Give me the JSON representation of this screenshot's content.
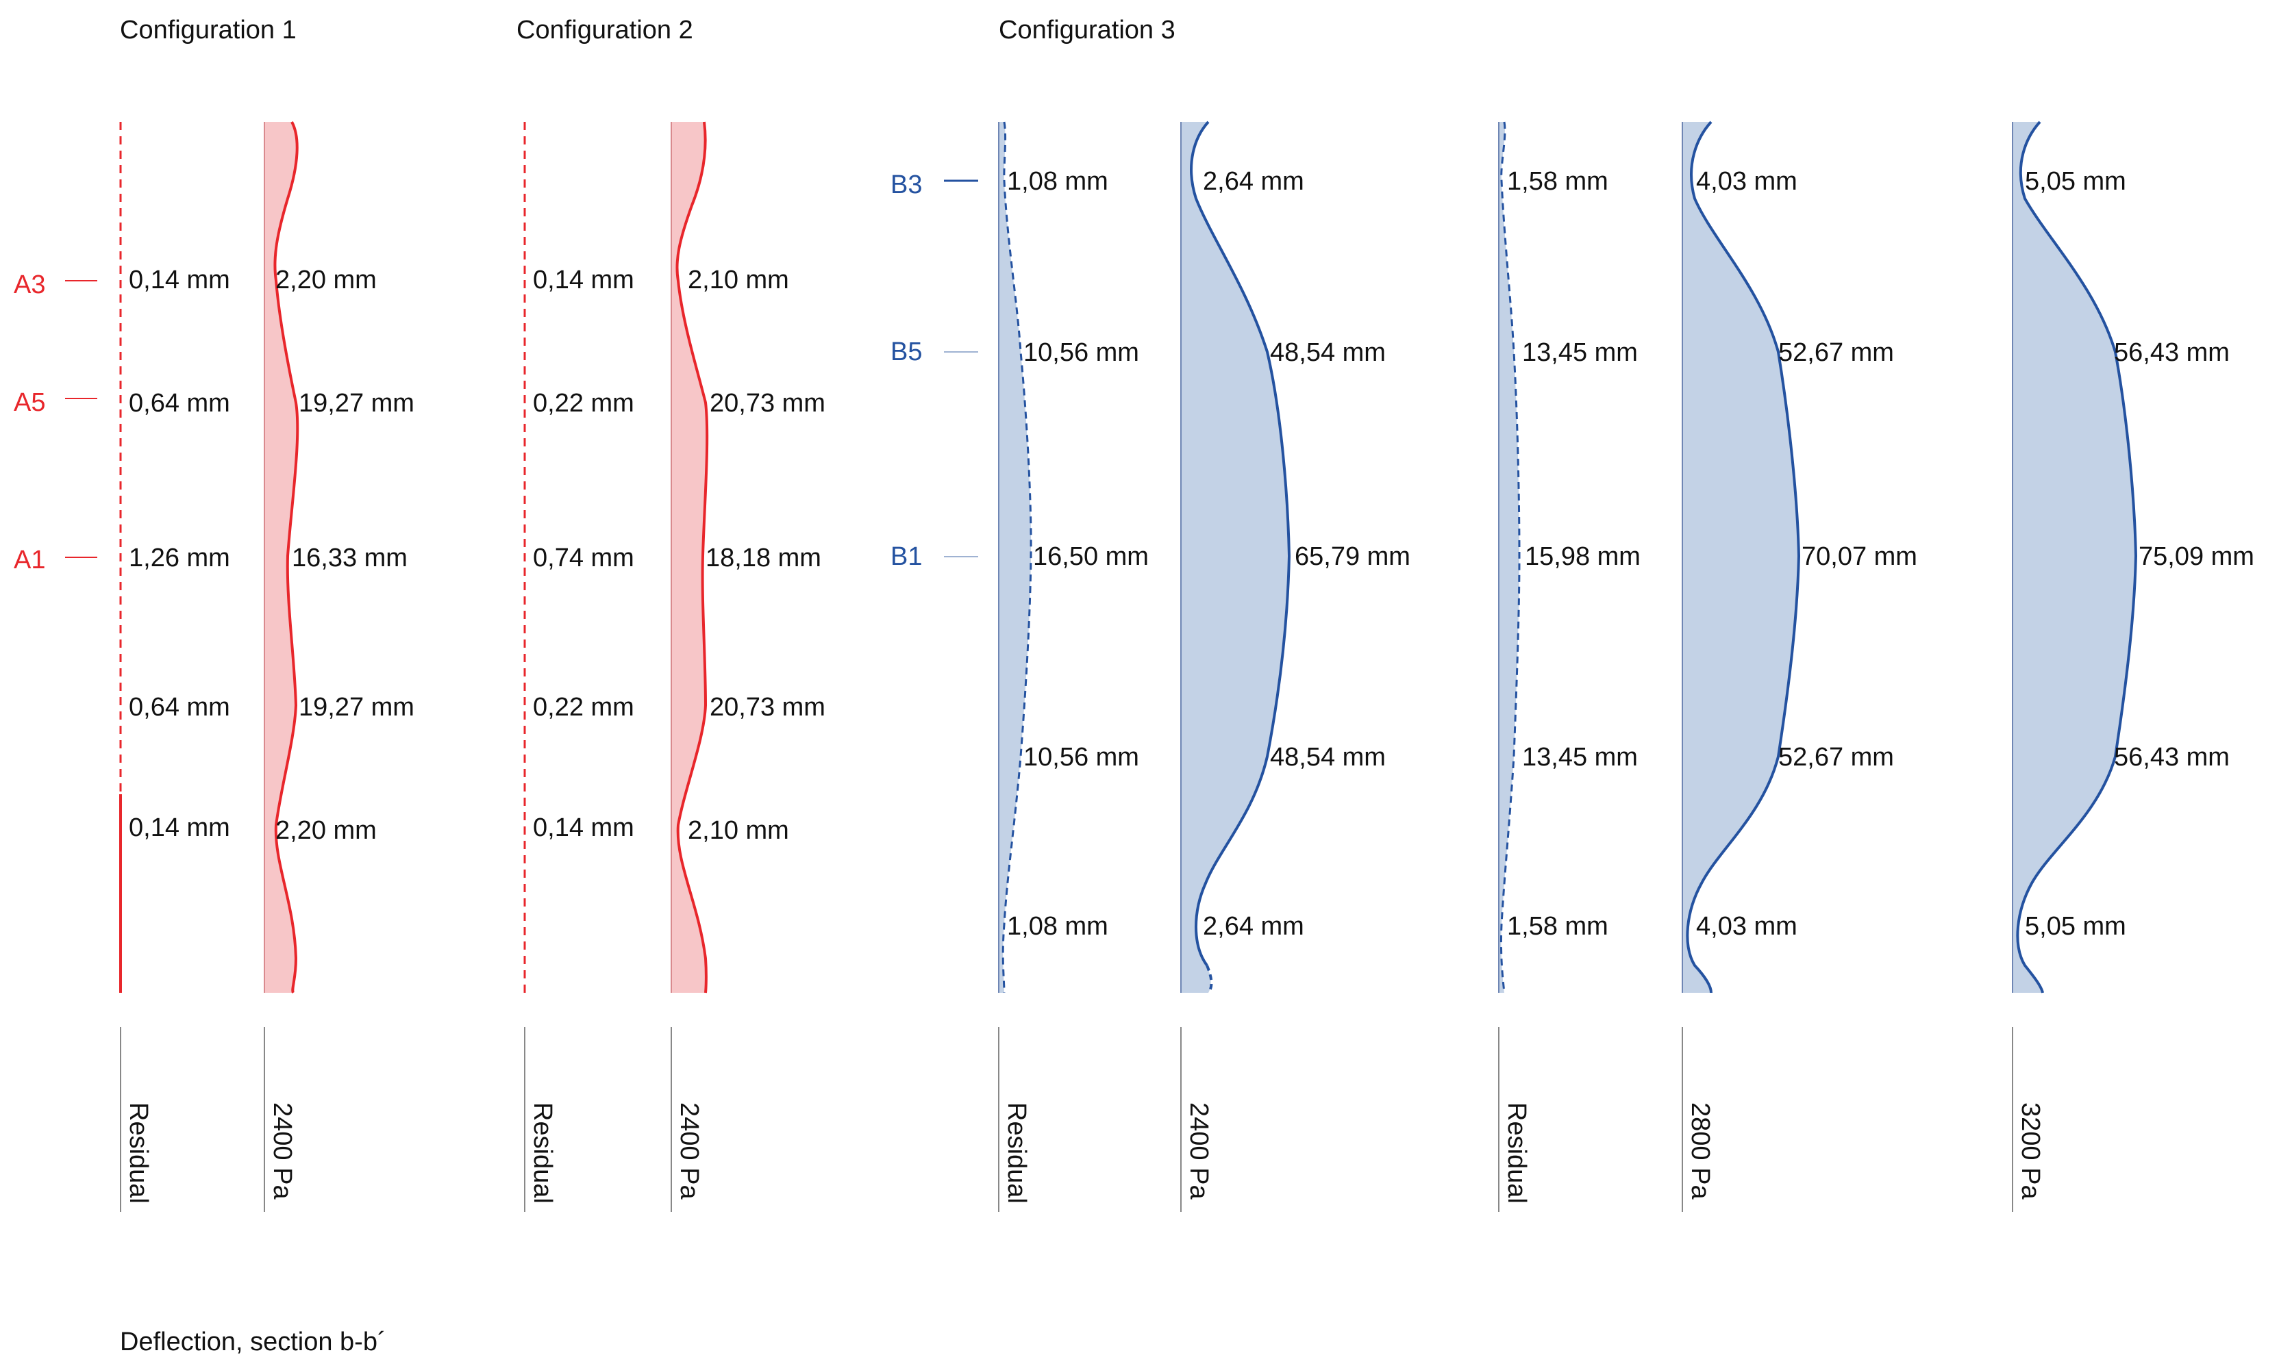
{
  "titles": {
    "config1": "Configuration 1",
    "config2": "Configuration 2",
    "config3": "Configuration 3",
    "caption": "Deflection, section b-b´"
  },
  "colors": {
    "red": "#e8262b",
    "red_fill": "#f7c6c8",
    "blue": "#2452a0",
    "blue_fill": "#c3d2e6",
    "text": "#111111",
    "gray_line": "#888888"
  },
  "markers_a": [
    "A3",
    "A5",
    "A1"
  ],
  "markers_b": [
    "B3",
    "B5",
    "B1"
  ],
  "columns": [
    {
      "id": "c1-residual",
      "color": "red",
      "style": "dashed-solid",
      "label": "Residual",
      "values": [
        "0,14 mm",
        "0,64 mm",
        "1,26 mm",
        "0,64 mm",
        "0,14 mm"
      ]
    },
    {
      "id": "c1-2400",
      "color": "red",
      "style": "filled",
      "label": "2400 Pa",
      "values": [
        "2,20 mm",
        "19,27 mm",
        "16,33 mm",
        "19,27 mm",
        "2,20 mm"
      ]
    },
    {
      "id": "c2-residual",
      "color": "red",
      "style": "dashed",
      "label": "Residual",
      "values": [
        "0,14 mm",
        "0,22 mm",
        "0,74 mm",
        "0,22 mm",
        "0,14 mm"
      ]
    },
    {
      "id": "c2-2400",
      "color": "red",
      "style": "filled",
      "label": "2400 Pa",
      "values": [
        "2,10 mm",
        "20,73 mm",
        "18,18 mm",
        "20,73 mm",
        "2,10 mm"
      ]
    },
    {
      "id": "c3-residual-a",
      "color": "blue",
      "style": "dashed-filled",
      "label": "Residual",
      "values": [
        "1,08 mm",
        "10,56 mm",
        "16,50 mm",
        "10,56 mm",
        "1,08 mm"
      ]
    },
    {
      "id": "c3-2400",
      "color": "blue",
      "style": "filled",
      "label": "2400 Pa",
      "values": [
        "2,64 mm",
        "48,54 mm",
        "65,79 mm",
        "48,54 mm",
        "2,64 mm"
      ]
    },
    {
      "id": "c3-residual-b",
      "color": "blue",
      "style": "dashed-filled",
      "label": "Residual",
      "values": [
        "1,58 mm",
        "13,45 mm",
        "15,98 mm",
        "13,45 mm",
        "1,58 mm"
      ]
    },
    {
      "id": "c3-2800",
      "color": "blue",
      "style": "filled",
      "label": "2800 Pa",
      "values": [
        "4,03 mm",
        "52,67 mm",
        "70,07 mm",
        "52,67 mm",
        "4,03 mm"
      ]
    },
    {
      "id": "c3-3200",
      "color": "blue",
      "style": "filled",
      "label": "3200 Pa",
      "values": [
        "5,05 mm",
        "56,43 mm",
        "75,09 mm",
        "56,43 mm",
        "5,05 mm"
      ]
    }
  ]
}
